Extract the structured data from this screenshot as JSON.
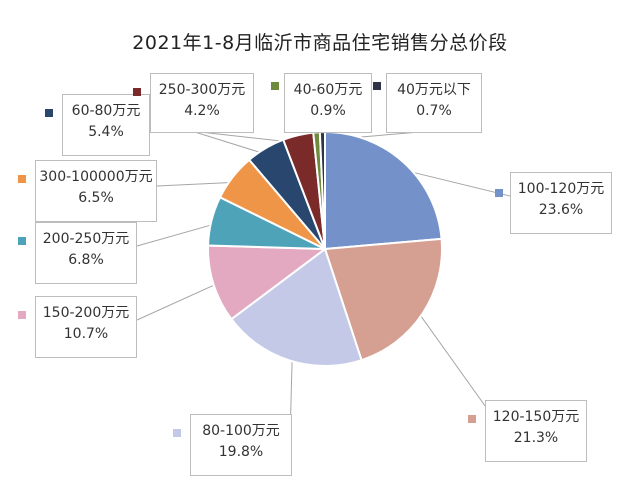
{
  "chart_data": {
    "type": "pie",
    "title": "2021年1-8月临沂市商品住宅销售分总价段",
    "slices": [
      {
        "label": "100-120万元",
        "value": 23.6,
        "display": "23.6%",
        "color": "#7591c9"
      },
      {
        "label": "120-150万元",
        "value": 21.3,
        "display": "21.3%",
        "color": "#d5a092"
      },
      {
        "label": "80-100万元",
        "value": 19.8,
        "display": "19.8%",
        "color": "#c4c9e8"
      },
      {
        "label": "150-200万元",
        "value": 10.7,
        "display": "10.7%",
        "color": "#e3a9c0"
      },
      {
        "label": "200-250万元",
        "value": 6.8,
        "display": "6.8%",
        "color": "#4fa3b9"
      },
      {
        "label": "300-100000万元",
        "value": 6.5,
        "display": "6.5%",
        "color": "#ee9548"
      },
      {
        "label": "60-80万元",
        "value": 5.4,
        "display": "5.4%",
        "color": "#29466e"
      },
      {
        "label": "250-300万元",
        "value": 4.2,
        "display": "4.2%",
        "color": "#7b2a2a"
      },
      {
        "label": "40-60万元",
        "value": 0.9,
        "display": "0.9%",
        "color": "#6f8a3d"
      },
      {
        "label": "40万元以下",
        "value": 0.7,
        "display": "0.7%",
        "color": "#2e3445"
      }
    ]
  }
}
